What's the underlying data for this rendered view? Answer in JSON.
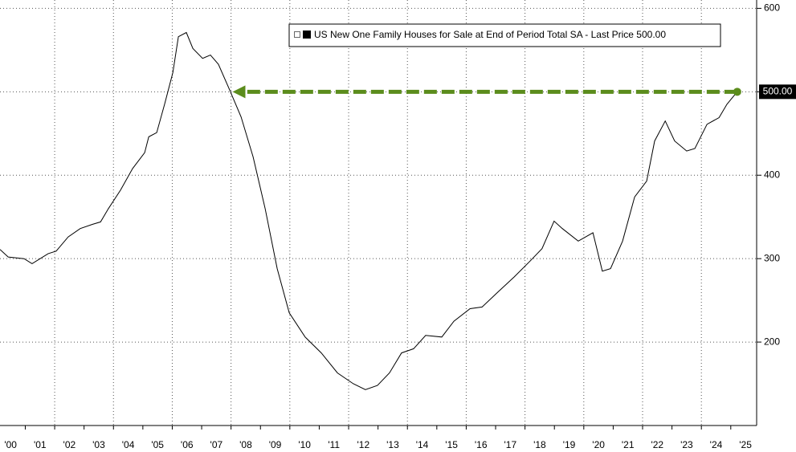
{
  "chart_data": {
    "type": "line",
    "x": [
      2000.14,
      2000.42,
      2000.96,
      2001.23,
      2001.78,
      2002.05,
      2002.46,
      2002.87,
      2003.28,
      2003.56,
      2003.83,
      2004.24,
      2004.65,
      2005.06,
      2005.2,
      2005.47,
      2005.74,
      2006.02,
      2006.21,
      2006.48,
      2006.7,
      2007.03,
      2007.3,
      2007.57,
      2007.93,
      2008.34,
      2008.75,
      2009.16,
      2009.57,
      2009.98,
      2010.52,
      2011.07,
      2011.62,
      2012.16,
      2012.57,
      2012.98,
      2013.39,
      2013.8,
      2014.21,
      2014.62,
      2015.17,
      2015.58,
      2016.13,
      2016.54,
      2017.08,
      2017.63,
      2018.17,
      2018.58,
      2018.99,
      2019.27,
      2019.81,
      2020.31,
      2020.63,
      2020.91,
      2021.32,
      2021.73,
      2022.14,
      2022.41,
      2022.77,
      2023.09,
      2023.5,
      2023.78,
      2024.19,
      2024.6,
      2024.87,
      2025.22
    ],
    "series": [
      {
        "name": "US New One Family Houses for Sale at End of Period Total SA - Last Price 500.00",
        "color": "#000000",
        "values": [
          311,
          302,
          300,
          294,
          306,
          309,
          326,
          336,
          341,
          344,
          360,
          382,
          408,
          427,
          446,
          451,
          485,
          523,
          566,
          571,
          552,
          540,
          544,
          533,
          504,
          470,
          422,
          360,
          288,
          235,
          206,
          187,
          163,
          150,
          143,
          148,
          163,
          187,
          192,
          208,
          206,
          225,
          240,
          242,
          260,
          278,
          297,
          312,
          345,
          336,
          321,
          331,
          285,
          288,
          321,
          374,
          393,
          441,
          465,
          441,
          429,
          432,
          461,
          469,
          485,
          500
        ]
      }
    ],
    "last_price_label": "500.00",
    "arrow": {
      "x": 2008.05,
      "y": 500,
      "color": "#5b8c1c"
    },
    "xlim": [
      2000.14,
      2025.88
    ],
    "ylim": [
      100,
      610
    ],
    "yticks": [
      200,
      300,
      400,
      500,
      600
    ],
    "xticks": [
      {
        "value": 2000,
        "label": "'00"
      },
      {
        "value": 2001,
        "label": "'01"
      },
      {
        "value": 2002,
        "label": "'02"
      },
      {
        "value": 2003,
        "label": "'03"
      },
      {
        "value": 2004,
        "label": "'04"
      },
      {
        "value": 2005,
        "label": "'05"
      },
      {
        "value": 2006,
        "label": "'06"
      },
      {
        "value": 2007,
        "label": "'07"
      },
      {
        "value": 2008,
        "label": "'08"
      },
      {
        "value": 2009,
        "label": "'09"
      },
      {
        "value": 2010,
        "label": "'10"
      },
      {
        "value": 2011,
        "label": "'11"
      },
      {
        "value": 2012,
        "label": "'12"
      },
      {
        "value": 2013,
        "label": "'13"
      },
      {
        "value": 2014,
        "label": "'14"
      },
      {
        "value": 2015,
        "label": "'15"
      },
      {
        "value": 2016,
        "label": "'16"
      },
      {
        "value": 2017,
        "label": "'17"
      },
      {
        "value": 2018,
        "label": "'18"
      },
      {
        "value": 2019,
        "label": "'19"
      },
      {
        "value": 2020,
        "label": "'20"
      },
      {
        "value": 2021,
        "label": "'21"
      },
      {
        "value": 2022,
        "label": "'22"
      },
      {
        "value": 2023,
        "label": "'23"
      },
      {
        "value": 2024,
        "label": "'24"
      },
      {
        "value": 2025,
        "label": "'25"
      }
    ],
    "grid": true
  }
}
